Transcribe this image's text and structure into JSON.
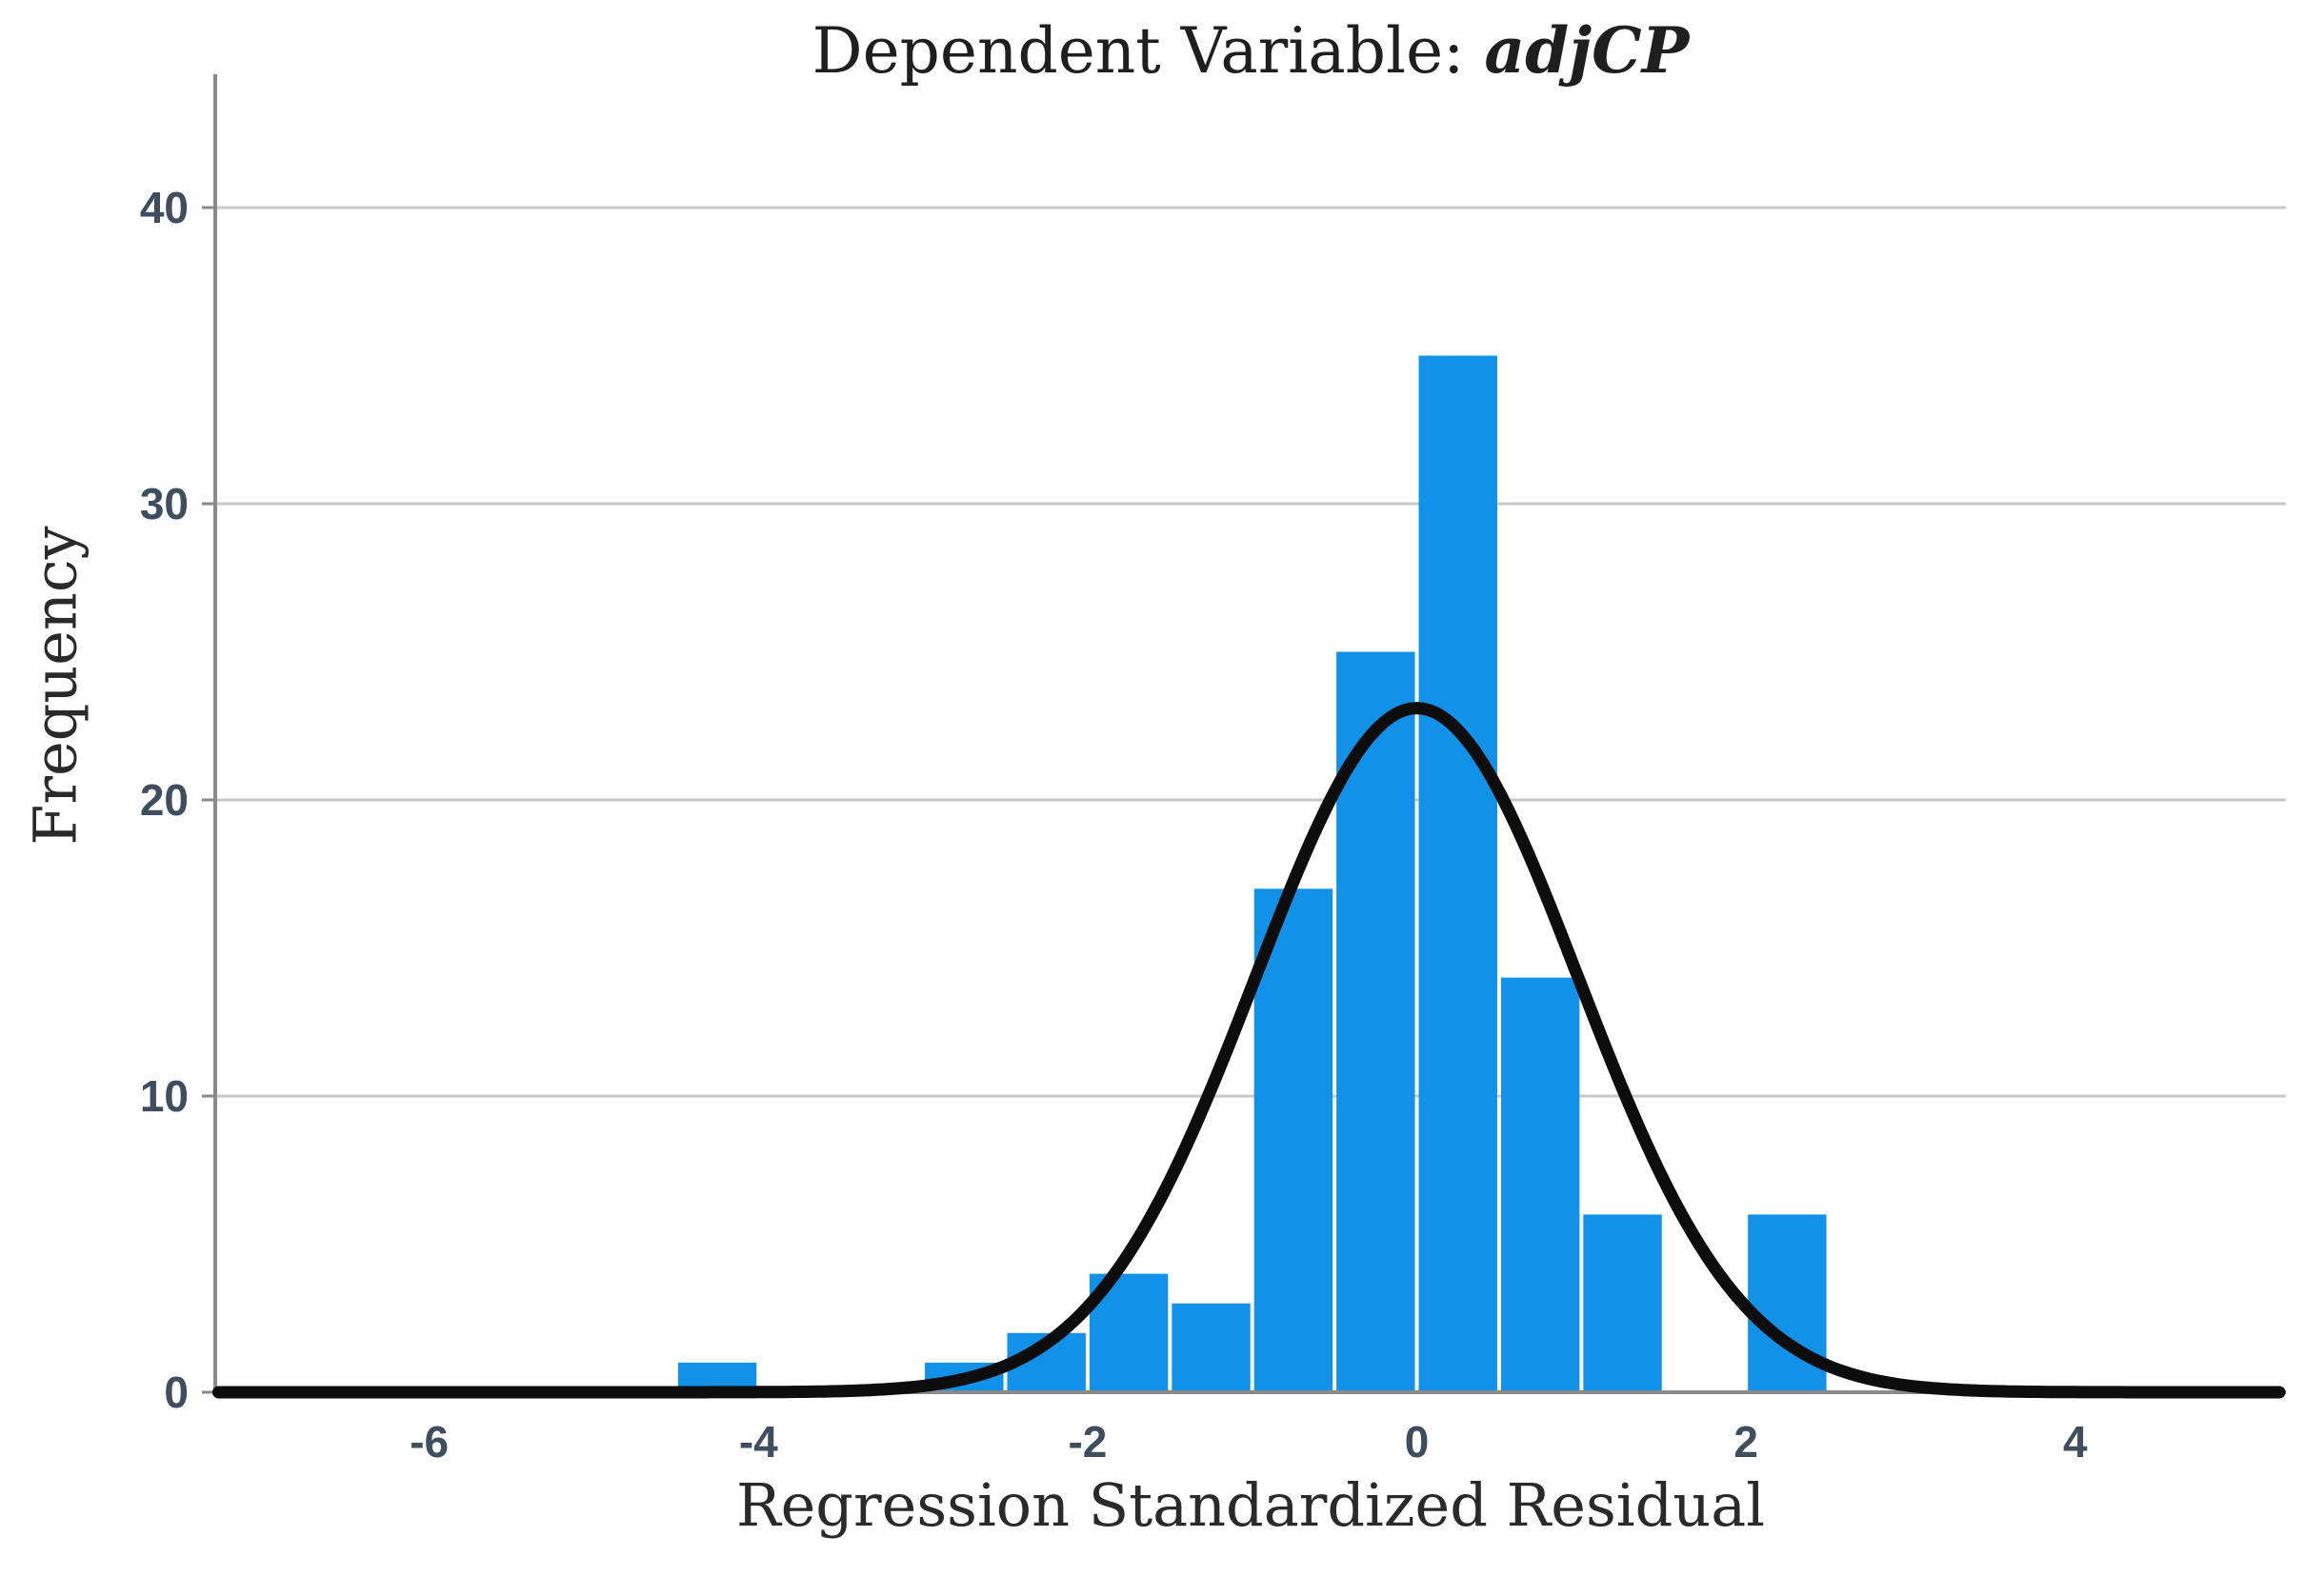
{
  "page": {
    "background": "#ffffff"
  },
  "chart": {
    "title_prefix": "Dependent Variable: ",
    "title_variable": "adjCP",
    "x_axis_title": "Regression Standardized Residual",
    "y_axis_title": "Frequency"
  },
  "chart_data": {
    "type": "bar",
    "subtype": "histogram-with-normal-curve",
    "title": "Dependent Variable: adjCP",
    "xlabel": "Regression Standardized Residual",
    "ylabel": "Frequency",
    "bin_width": 0.5,
    "bins": [
      {
        "start": -4.5,
        "count": 1
      },
      {
        "start": -4.0,
        "count": 0
      },
      {
        "start": -3.5,
        "count": 0
      },
      {
        "start": -3.0,
        "count": 1
      },
      {
        "start": -2.5,
        "count": 2
      },
      {
        "start": -2.0,
        "count": 4
      },
      {
        "start": -1.5,
        "count": 3
      },
      {
        "start": -1.0,
        "count": 17
      },
      {
        "start": -0.5,
        "count": 25
      },
      {
        "start": 0.0,
        "count": 35
      },
      {
        "start": 0.5,
        "count": 14
      },
      {
        "start": 1.0,
        "count": 6
      },
      {
        "start": 1.5,
        "count": 0
      },
      {
        "start": 2.0,
        "count": 6
      }
    ],
    "total_n": 114,
    "x_ticks": [
      -6,
      -4,
      -2,
      0,
      2,
      4
    ],
    "y_ticks": [
      0,
      10,
      20,
      30,
      40
    ],
    "x_range": [
      -7.3,
      5.28
    ],
    "y_range": [
      0,
      44.5
    ],
    "grid": "horizontal-only",
    "legend": "none",
    "normal_curve": {
      "mean": 0,
      "sd": 0.98,
      "peak": 23.1
    },
    "colors": {
      "bar": "#1191E8",
      "bar_separator": "#ffffff",
      "curve": "#0d0d0d",
      "grid": "#c9c9c9",
      "axis": "#8a8a8a",
      "tick_label": "#3E4E5E",
      "title_text": "#1f1f1f"
    }
  }
}
